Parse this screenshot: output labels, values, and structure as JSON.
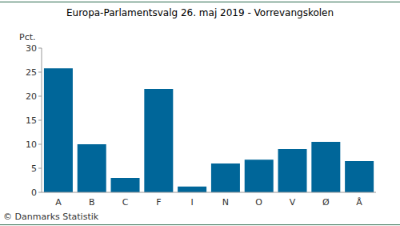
{
  "chart_data": {
    "type": "bar",
    "title": "Europa-Parlamentsvalg 26. maj 2019 - Vorrevangskolen",
    "ylabel": "Pct.",
    "source": "© Danmarks Statistik",
    "categories": [
      "A",
      "B",
      "C",
      "F",
      "I",
      "N",
      "O",
      "V",
      "Ø",
      "Å"
    ],
    "values": [
      25.8,
      10.0,
      3.0,
      21.5,
      1.2,
      6.0,
      6.8,
      9.0,
      10.5,
      6.5
    ],
    "color": "#006699",
    "ylim": [
      0,
      30
    ],
    "yticks": [
      0,
      5,
      10,
      15,
      20,
      25,
      30
    ],
    "grid": false
  }
}
